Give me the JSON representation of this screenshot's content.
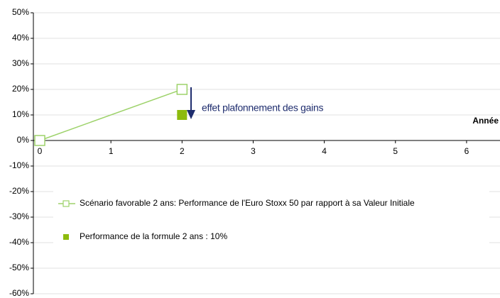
{
  "chart_data": {
    "type": "line",
    "x_label": "Année",
    "xlim": [
      -0.09,
      6.47
    ],
    "xticks": [
      0,
      1,
      2,
      3,
      4,
      5,
      6
    ],
    "ylim": [
      -60,
      50
    ],
    "yticks": [
      {
        "value": 50,
        "label": "50%"
      },
      {
        "value": 40,
        "label": "40%"
      },
      {
        "value": 30,
        "label": "30%"
      },
      {
        "value": 20,
        "label": "20%"
      },
      {
        "value": 10,
        "label": "10%"
      },
      {
        "value": 0,
        "label": "0%"
      },
      {
        "value": -10,
        "label": "-10%"
      },
      {
        "value": -20,
        "label": "-20%"
      },
      {
        "value": -30,
        "label": "-30%"
      },
      {
        "value": -40,
        "label": "-40%"
      },
      {
        "value": -50,
        "label": "-50%"
      },
      {
        "value": -60,
        "label": "-60%"
      }
    ],
    "grid": true,
    "series": [
      {
        "name": "Scénario favorable 2 ans: Performance de l'Euro Stoxx 50 par rapport à sa Valeur Initiale",
        "color": "#9dd26a",
        "marker": "hollow-square",
        "x": [
          0,
          2
        ],
        "values": [
          0,
          20
        ]
      },
      {
        "name": "Performance de la formule 2 ans : 10%",
        "color": "#8dbb0d",
        "marker": "filled-square",
        "x": [
          2
        ],
        "values": [
          10
        ]
      }
    ],
    "annotation": "effet plafonnement des gains"
  }
}
